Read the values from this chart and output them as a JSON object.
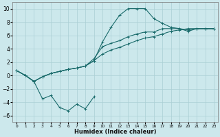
{
  "xlabel": "Humidex (Indice chaleur)",
  "background_color": "#cce8ec",
  "grid_color": "#aacfd5",
  "line_color": "#1a6b6b",
  "x_values": [
    0,
    1,
    2,
    3,
    4,
    5,
    6,
    7,
    8,
    9,
    10,
    11,
    12,
    13,
    14,
    15,
    16,
    17,
    18,
    19,
    20,
    21,
    22,
    23
  ],
  "line_zigzag": [
    0.7,
    0.0,
    -0.9,
    -3.5,
    -3.0,
    -4.8,
    -5.3,
    -4.3,
    -5.0,
    -3.2,
    null,
    null,
    null,
    null,
    null,
    null,
    null,
    null,
    null,
    null,
    null,
    null,
    null,
    null
  ],
  "line_upper": [
    0.7,
    0.0,
    -0.9,
    -0.2,
    0.3,
    0.6,
    0.9,
    1.1,
    1.4,
    2.2,
    5.0,
    7.2,
    9.0,
    10.0,
    10.0,
    10.0,
    8.5,
    7.8,
    7.2,
    7.0,
    6.6,
    7.0,
    7.0,
    7.0
  ],
  "line_mid": [
    0.7,
    0.0,
    -0.9,
    -0.2,
    0.3,
    0.6,
    0.9,
    1.1,
    1.4,
    2.5,
    4.3,
    4.8,
    5.2,
    5.8,
    6.2,
    6.5,
    6.5,
    7.0,
    7.0,
    7.0,
    6.8,
    7.0,
    7.0,
    7.0
  ],
  "line_lower": [
    0.7,
    0.0,
    -0.9,
    -0.2,
    0.3,
    0.6,
    0.9,
    1.1,
    1.4,
    2.2,
    3.2,
    3.8,
    4.2,
    4.7,
    5.2,
    5.6,
    5.8,
    6.2,
    6.6,
    6.8,
    7.0,
    7.0,
    7.0,
    7.0
  ],
  "ylim": [
    -7,
    11
  ],
  "xlim": [
    -0.5,
    23.5
  ],
  "yticks": [
    -6,
    -4,
    -2,
    0,
    2,
    4,
    6,
    8,
    10
  ],
  "xticks": [
    0,
    1,
    2,
    3,
    4,
    5,
    6,
    7,
    8,
    9,
    10,
    11,
    12,
    13,
    14,
    15,
    16,
    17,
    18,
    19,
    20,
    21,
    22,
    23
  ]
}
